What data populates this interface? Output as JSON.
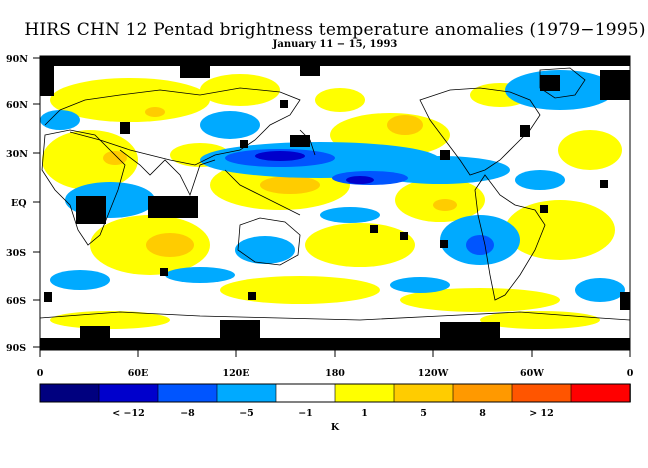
{
  "title": "HIRS CHN 12 Pentad brightness temperature anomalies (1979−1995)",
  "subtitle": "January 11 − 15, 1993",
  "map": {
    "lat_labels": [
      "90N",
      "60N",
      "30N",
      "EQ",
      "30S",
      "60S",
      "90S"
    ],
    "lon_labels": [
      "0",
      "60E",
      "120E",
      "180",
      "120W",
      "60W",
      "0"
    ]
  },
  "colorbar": {
    "unit": "K",
    "colors": [
      "#00007f",
      "#0000cc",
      "#0055ff",
      "#00aaff",
      "#ffffff",
      "#ffff00",
      "#ffcc00",
      "#ff9900",
      "#ff5500",
      "#ff0000"
    ],
    "tick_labels": [
      "< −12",
      "−8",
      "−5",
      "−1",
      "1",
      "5",
      "8",
      "> 12"
    ]
  }
}
